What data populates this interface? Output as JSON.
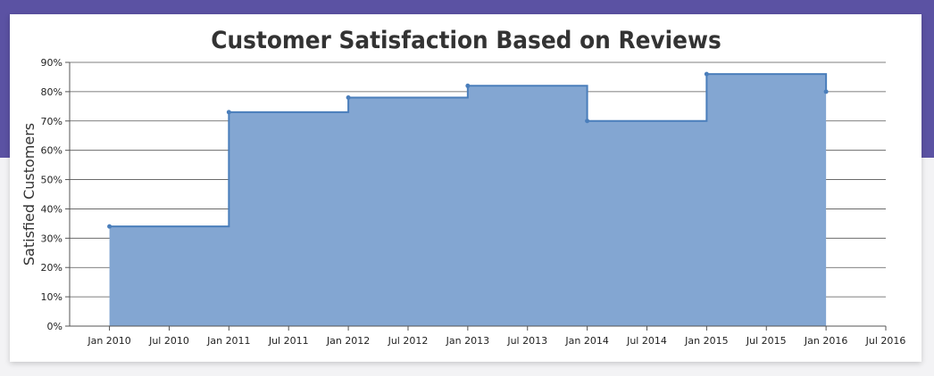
{
  "colors": {
    "banner": "#5b52a3",
    "area_fill": "#83a6d2",
    "line": "#4a7ebb",
    "grid": "#555555",
    "text": "#222222"
  },
  "chart_data": {
    "type": "area",
    "step": true,
    "title": "Customer Satisfaction Based on Reviews",
    "ylabel": "Satisfied Customers",
    "xlabel": "",
    "ylim": [
      0,
      90
    ],
    "ytick_step": 10,
    "y_suffix": "%",
    "yticks": [
      "0%",
      "10%",
      "20%",
      "30%",
      "40%",
      "50%",
      "60%",
      "70%",
      "80%",
      "90%"
    ],
    "xlim": [
      "2009-09",
      "2016-07"
    ],
    "xticks": [
      "Jan 2010",
      "Jul 2010",
      "Jan 2011",
      "Jul 2011",
      "Jan 2012",
      "Jul 2012",
      "Jan 2013",
      "Jul 2013",
      "Jan 2014",
      "Jul 2014",
      "Jan 2015",
      "Jul 2015",
      "Jan 2016",
      "Jul 2016"
    ],
    "grid": true,
    "legend": "none",
    "series": [
      {
        "x": [
          "2010-01",
          "2011-01",
          "2012-01",
          "2013-01",
          "2014-01",
          "2015-01",
          "2016-01"
        ],
        "values": [
          34,
          73,
          78,
          82,
          70,
          86,
          80
        ]
      }
    ]
  }
}
